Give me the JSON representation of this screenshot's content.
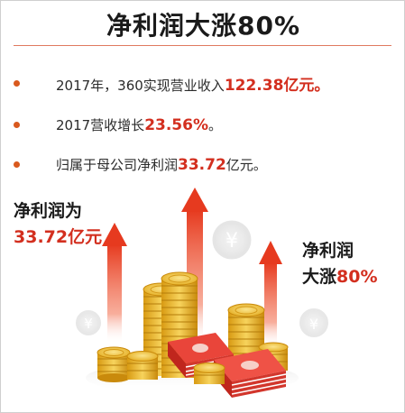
{
  "title": "净利润大涨80%",
  "bullets": [
    {
      "prefix": "2017年，360实现营业收入",
      "highlight": "122.38",
      "suffix": "亿元。"
    },
    {
      "prefix": "2017营收增长",
      "highlight": "23.56%",
      "suffix": "。"
    },
    {
      "prefix": "归属于母公司净利润",
      "highlight": "33.72",
      "suffix": "亿元。"
    }
  ],
  "left_note": {
    "line1": "净利润为",
    "line2": "33.72亿元"
  },
  "right_note": {
    "line1": "净利润",
    "line2_prefix": "大涨",
    "line2_highlight": "80%"
  },
  "icons": {
    "currency": "yen-coin-icon",
    "arrow": "up-arrow-icon",
    "money": "banknote-stack-icon"
  },
  "colors": {
    "accent": "#d32f1f",
    "bullet": "#d9591e",
    "coin": "#f2c233"
  },
  "currency_symbol": "¥"
}
